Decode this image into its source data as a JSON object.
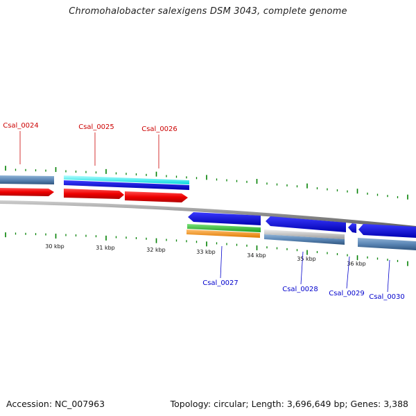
{
  "title": "Chromohalobacter salexigens DSM 3043, complete genome",
  "footer": {
    "accession": "Accession: NC_007963",
    "summary": "Topology: circular; Length: 3,696,649 bp; Genes: 3,388"
  },
  "colors": {
    "top_label": "#cc0000",
    "bottom_label": "#0000cc",
    "tick": "#008000",
    "backbone": "#888888",
    "cds_forward": "#ee0000",
    "cds_reverse": "#0000ee"
  },
  "scale_labels": [
    "30 kbp",
    "31 kbp",
    "32 kbp",
    "33 kbp",
    "34 kbp",
    "35 kbp",
    "36 kbp"
  ],
  "top_loci": [
    "Csal_0024",
    "Csal_0025",
    "Csal_0026"
  ],
  "bottom_loci": [
    "Csal_0027",
    "Csal_0028",
    "Csal_0029",
    "Csal_0030"
  ]
}
